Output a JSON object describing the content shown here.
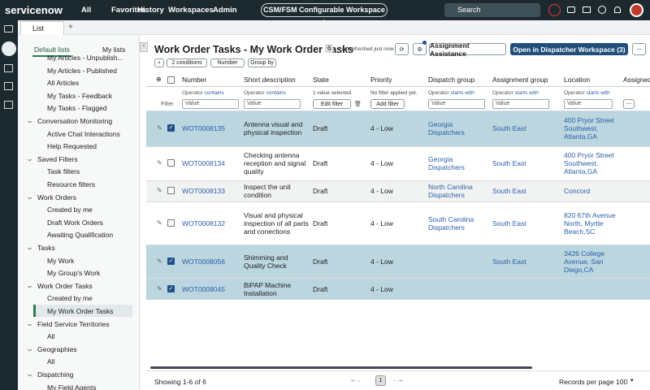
{
  "topbar": {
    "logo": "servicenow",
    "menu": [
      "All",
      "Favorites",
      "History",
      "Workspaces",
      "Admin"
    ],
    "workspace": "CSM/FSM Configurable Workspace",
    "search": "Search"
  },
  "tab": "List",
  "sidebar": {
    "tabs": [
      "Default lists",
      "My lists"
    ],
    "top_items": [
      "My Articles - Unpublish...",
      "My Articles - Published",
      "All Articles",
      "My Tasks - Feedback",
      "My Tasks - Flagged"
    ],
    "groups": [
      {
        "title": "Conversation Monitoring",
        "items": [
          "Active Chat Interactions",
          "Help Requested"
        ]
      },
      {
        "title": "Saved Filters",
        "items": [
          "Task filters",
          "Resource filters"
        ]
      },
      {
        "title": "Work Orders",
        "items": [
          "Created by me",
          "Draft Work Orders",
          "Awaiting Qualification"
        ]
      },
      {
        "title": "Tasks",
        "items": [
          "My Work",
          "My Group's Work"
        ]
      },
      {
        "title": "Work Order Tasks",
        "items": [
          "Created by me",
          "My Work Order Tasks"
        ]
      },
      {
        "title": "Field Service Territories",
        "items": [
          "All"
        ]
      },
      {
        "title": "Geographies",
        "items": [
          "All"
        ]
      },
      {
        "title": "Dispatching",
        "items": [
          "My Field Agents"
        ]
      }
    ]
  },
  "header": {
    "title": "Work Order Tasks - My Work Order Tasks",
    "count": "6",
    "refreshed": "Last refreshed just now.",
    "assist_button": "Assignment Assistance",
    "dispatch_button": "Open in Dispatcher Workspace (3)"
  },
  "toolbar": [
    "2 conditions",
    "Number",
    "Group by"
  ],
  "table": {
    "columns": [
      "Number",
      "Short description",
      "State",
      "Priority",
      "Dispatch group",
      "Assignment group",
      "Location",
      "Assigned"
    ],
    "filter_label": "Filter",
    "filters": [
      {
        "operator": "Operator",
        "op_value": "contains",
        "placeholder": "Value"
      },
      {
        "operator": "Operator",
        "op_value": "contains",
        "placeholder": "Value"
      },
      {
        "note": "1 value selected.",
        "button": "Edit filter"
      },
      {
        "note": "No filter applied yet.",
        "button": "Add filter"
      },
      {
        "operator": "Operator",
        "op_value": "starts with",
        "placeholder": "Value"
      },
      {
        "operator": "Operator",
        "op_value": "starts with",
        "placeholder": "Value"
      },
      {
        "operator": "Operator",
        "op_value": "starts with",
        "placeholder": "Value"
      }
    ],
    "rows": [
      {
        "selected": true,
        "number": "WOT0008135",
        "short_description": "Antenna visual and physical inspection",
        "state": "Draft",
        "priority": "4 - Low",
        "dispatch_group": "Georgia Dispatchers",
        "assignment_group": "South East",
        "location": "400 Pryor Street Southwest, Atlanta,GA"
      },
      {
        "selected": false,
        "number": "WOT0008134",
        "short_description": "Checking antenna reception and signal quality",
        "state": "Draft",
        "priority": "4 - Low",
        "dispatch_group": "Georgia Dispatchers",
        "assignment_group": "South East",
        "location": "400 Pryor Street Southwest, Atlanta,GA"
      },
      {
        "selected": false,
        "number": "WOT0008133",
        "short_description": "Inspect the unit condition",
        "state": "Draft",
        "priority": "4 - Low",
        "dispatch_group": "North Carolina Dispatchers",
        "assignment_group": "South East",
        "location": "Concord"
      },
      {
        "selected": false,
        "number": "WOT0008132",
        "short_description": "Visual and physical inspection of all parts and conections",
        "state": "Draft",
        "priority": "4 - Low",
        "dispatch_group": "South Carolina Dispatchers",
        "assignment_group": "South East",
        "location": "820 67th Avenue North, Myrtle Beach,SC"
      },
      {
        "selected": true,
        "number": "WOT0008056",
        "short_description": "Shimming and Quality Check",
        "state": "Draft",
        "priority": "4 - Low",
        "dispatch_group": null,
        "assignment_group": "South East",
        "location": "3426 College Avenue, San Diego,CA"
      },
      {
        "selected": true,
        "number": "WOT0008045",
        "short_description": "BiPAP Machine Installation",
        "state": "Draft",
        "priority": "4 - Low",
        "dispatch_group": null,
        "assignment_group": null,
        "location": null
      }
    ]
  },
  "footer": {
    "showing": "Showing 1-6 of 6",
    "page": "1",
    "records_label": "Records per page",
    "records": "100"
  }
}
